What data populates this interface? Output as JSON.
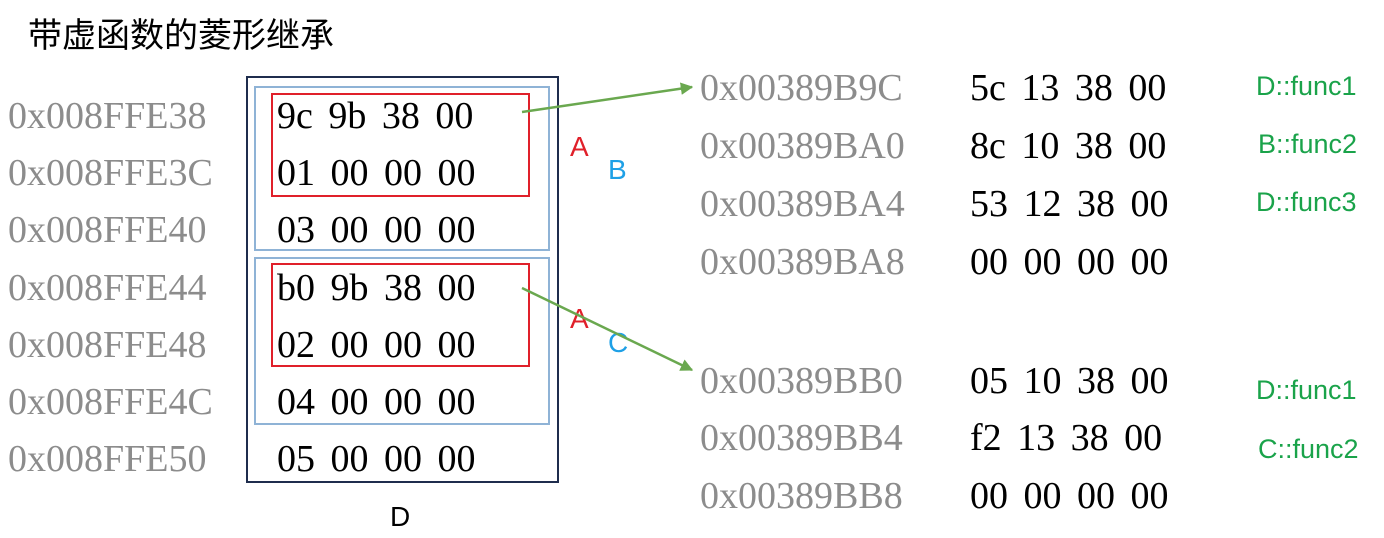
{
  "title": "带虚函数的菱形继承",
  "object_label": "D",
  "object_memory": [
    {
      "addr": "0x008FFE38",
      "bytes": "9c 9b 38 00"
    },
    {
      "addr": "0x008FFE3C",
      "bytes": "01 00 00 00"
    },
    {
      "addr": "0x008FFE40",
      "bytes": "03 00 00 00"
    },
    {
      "addr": "0x008FFE44",
      "bytes": "b0 9b 38 00"
    },
    {
      "addr": "0x008FFE48",
      "bytes": "02 00 00 00"
    },
    {
      "addr": "0x008FFE4C",
      "bytes": "04 00 00 00"
    },
    {
      "addr": "0x008FFE50",
      "bytes": "05 00 00 00"
    }
  ],
  "subobject_labels": {
    "b_block": {
      "inner": "A",
      "outer": "B"
    },
    "c_block": {
      "inner": "A",
      "outer": "C"
    }
  },
  "vtable_b": [
    {
      "addr": "0x00389B9C",
      "bytes": "5c 13 38 00",
      "func": "D::func1"
    },
    {
      "addr": "0x00389BA0",
      "bytes": "8c 10 38 00",
      "func": "B::func2"
    },
    {
      "addr": "0x00389BA4",
      "bytes": "53 12 38 00",
      "func": "D::func3"
    },
    {
      "addr": "0x00389BA8",
      "bytes": "00 00 00 00",
      "func": ""
    }
  ],
  "vtable_c": [
    {
      "addr": "0x00389BB0",
      "bytes": "05 10 38 00",
      "func": "D::func1"
    },
    {
      "addr": "0x00389BB4",
      "bytes": "f2 13 38 00",
      "func": "C::func2"
    },
    {
      "addr": "0x00389BB8",
      "bytes": "00 00 00 00",
      "func": ""
    }
  ],
  "colors": {
    "address_gray": "#8c8c8c",
    "base_a_label": "#e0202a",
    "derived_label": "#1ea0e6",
    "function_green": "#1aa34a",
    "pointer_arrow": "#6aa84f",
    "object_border": "#1f2d4d",
    "subobject_border": "#8fb3d6",
    "vptr_box": "#e0202a"
  }
}
